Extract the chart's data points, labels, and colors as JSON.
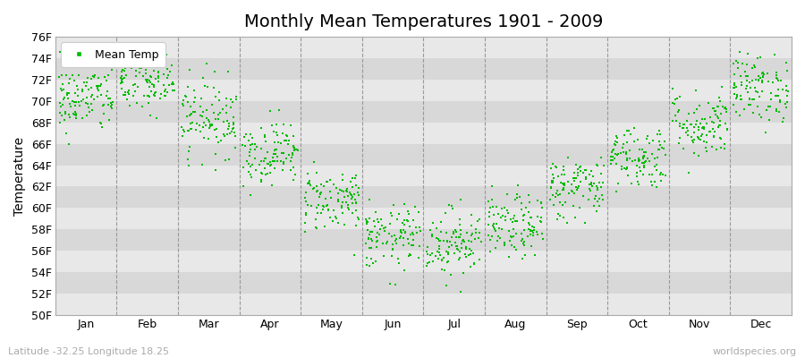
{
  "title": "Monthly Mean Temperatures 1901 - 2009",
  "ylabel": "Temperature",
  "xlabel_labels": [
    "Jan",
    "Feb",
    "Mar",
    "Apr",
    "May",
    "Jun",
    "Jul",
    "Aug",
    "Sep",
    "Oct",
    "Nov",
    "Dec"
  ],
  "footer_left": "Latitude -32.25 Longitude 18.25",
  "footer_right": "worldspecies.org",
  "ylim": [
    50,
    76
  ],
  "yticks": [
    50,
    52,
    54,
    56,
    58,
    60,
    62,
    64,
    66,
    68,
    70,
    72,
    74,
    76
  ],
  "ytick_labels": [
    "50F",
    "52F",
    "54F",
    "56F",
    "58F",
    "60F",
    "62F",
    "64F",
    "66F",
    "68F",
    "70F",
    "72F",
    "74F",
    "76F"
  ],
  "dot_color": "#00bb00",
  "dot_size": 3,
  "background_color": "#ffffff",
  "stripe_light": "#e8e8e8",
  "stripe_dark": "#d8d8d8",
  "dashed_line_color": "#999999",
  "legend_label": "Mean Temp",
  "title_fontsize": 14,
  "axis_fontsize": 10,
  "tick_fontsize": 9,
  "footer_fontsize": 8,
  "seed": 42,
  "monthly_means": [
    70.2,
    71.8,
    68.5,
    65.2,
    60.8,
    57.2,
    56.8,
    58.2,
    62.0,
    64.8,
    67.8,
    71.2
  ],
  "monthly_stds": [
    1.6,
    1.6,
    1.8,
    1.5,
    1.5,
    1.5,
    1.6,
    1.5,
    1.5,
    1.5,
    1.6,
    1.6
  ],
  "n_years": 109
}
